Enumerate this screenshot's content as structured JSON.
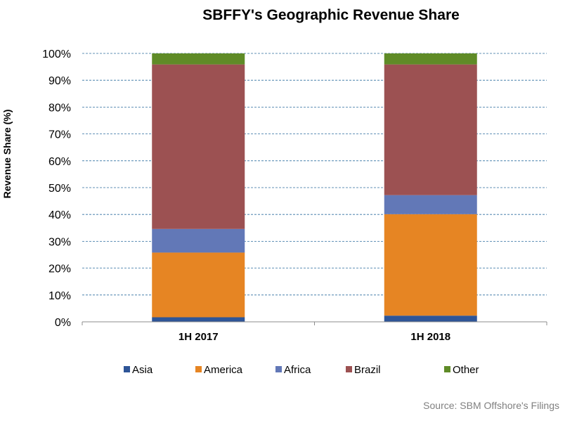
{
  "chart_data": {
    "type": "bar",
    "stacked": true,
    "title": "SBFFY's Geographic Revenue Share",
    "ylabel": "Revenue Share (%)",
    "xlabel": "",
    "ylim": [
      0,
      100
    ],
    "yticks": [
      "0%",
      "10%",
      "20%",
      "30%",
      "40%",
      "50%",
      "60%",
      "70%",
      "80%",
      "90%",
      "100%"
    ],
    "categories": [
      "1H 2017",
      "1H 2018"
    ],
    "series": [
      {
        "name": "Asia",
        "color": "#2e5597",
        "values": [
          1.7,
          2.3
        ]
      },
      {
        "name": "America",
        "color": "#e68523",
        "values": [
          24.1,
          37.8
        ]
      },
      {
        "name": "Africa",
        "color": "#6278b7",
        "values": [
          8.8,
          7.1
        ]
      },
      {
        "name": "Brazil",
        "color": "#9c5152",
        "values": [
          61.3,
          48.7
        ]
      },
      {
        "name": "Other",
        "color": "#5f8b27",
        "values": [
          4.1,
          4.1
        ]
      }
    ],
    "grid": true,
    "legend_position": "bottom",
    "source": "Source: SBM Offshore's Filings"
  }
}
